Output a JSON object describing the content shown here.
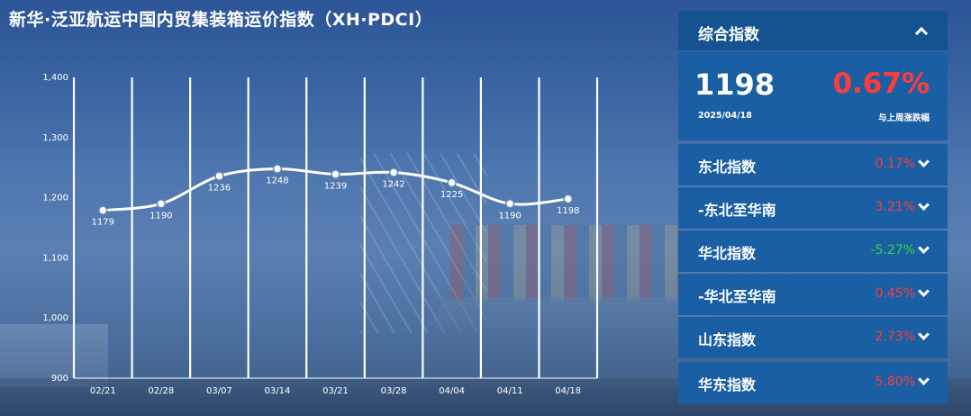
{
  "title": "新华·泛亚航运中国内贸集装箱运价指数（XH·PDCI）",
  "chart_data": {
    "type": "line",
    "title": "",
    "xlabel": "",
    "ylabel": "",
    "categories": [
      "02/21",
      "02/28",
      "03/07",
      "03/14",
      "03/21",
      "03/28",
      "04/04",
      "04/11",
      "04/18"
    ],
    "values": [
      1179,
      1190,
      1236,
      1248,
      1239,
      1242,
      1225,
      1190,
      1198
    ],
    "data_labels": [
      "1179",
      "1190",
      "1236",
      "1248",
      "1239",
      "1242",
      "1225",
      "1190",
      "1198"
    ],
    "ylim": [
      900,
      1400
    ],
    "yticks": [
      900,
      1000,
      1100,
      1200,
      1300,
      1400
    ],
    "ytick_labels": [
      "900",
      "1,000",
      "1,100",
      "1,200",
      "1,300",
      "1,400"
    ],
    "grid": "vertical",
    "line_color": "#ffffff"
  },
  "summary": {
    "label": "综合指数",
    "value": "1198",
    "date": "2025/04/18",
    "change": "0.67%",
    "change_label": "与上周涨跌幅"
  },
  "indices": [
    {
      "label": "东北指数",
      "value": "0.17%",
      "trend": "up"
    },
    {
      "label": "-东北至华南",
      "value": "3.21%",
      "trend": "up"
    },
    {
      "label": "华北指数",
      "value": "-5.27%",
      "trend": "down"
    },
    {
      "label": "-华北至华南",
      "value": "0.45%",
      "trend": "up"
    },
    {
      "label": "山东指数",
      "value": "2.73%",
      "trend": "up"
    },
    {
      "label": "华东指数",
      "value": "5.80%",
      "trend": "up"
    }
  ],
  "colors": {
    "up": "#ff3b3b",
    "down": "#37d43a",
    "panel": "#1a5fa3"
  },
  "icons": {
    "collapse": "chevron-up-icon",
    "expand": "chevron-down-icon"
  }
}
